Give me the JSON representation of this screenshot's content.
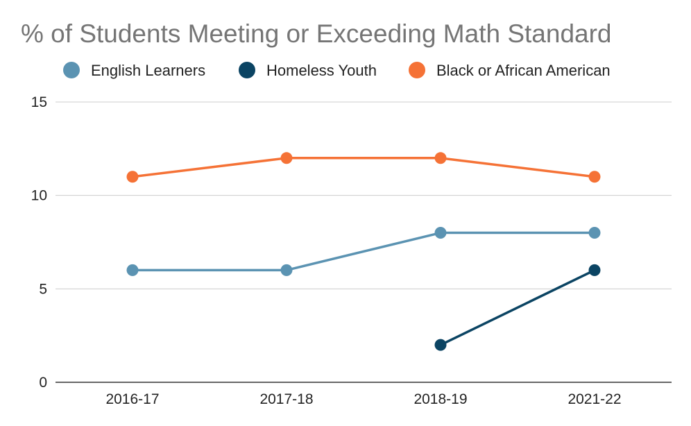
{
  "chart_data": {
    "type": "line",
    "title": "% of Students Meeting or Exceeding Math Standard",
    "xlabel": "",
    "ylabel": "",
    "categories": [
      "2016-17",
      "2017-18",
      "2018-19",
      "2021-22"
    ],
    "y_ticks": [
      0,
      5,
      10,
      15
    ],
    "ylim": [
      0,
      15
    ],
    "grid": true,
    "legend_position": "top",
    "series": [
      {
        "name": "English Learners",
        "color": "#5b93b2",
        "values": [
          6,
          6,
          8,
          8
        ]
      },
      {
        "name": "Homeless Youth",
        "color": "#0b4463",
        "values": [
          null,
          null,
          2,
          6
        ]
      },
      {
        "name": "Black or African American",
        "color": "#f57236",
        "values": [
          11,
          12,
          12,
          11
        ]
      }
    ]
  }
}
